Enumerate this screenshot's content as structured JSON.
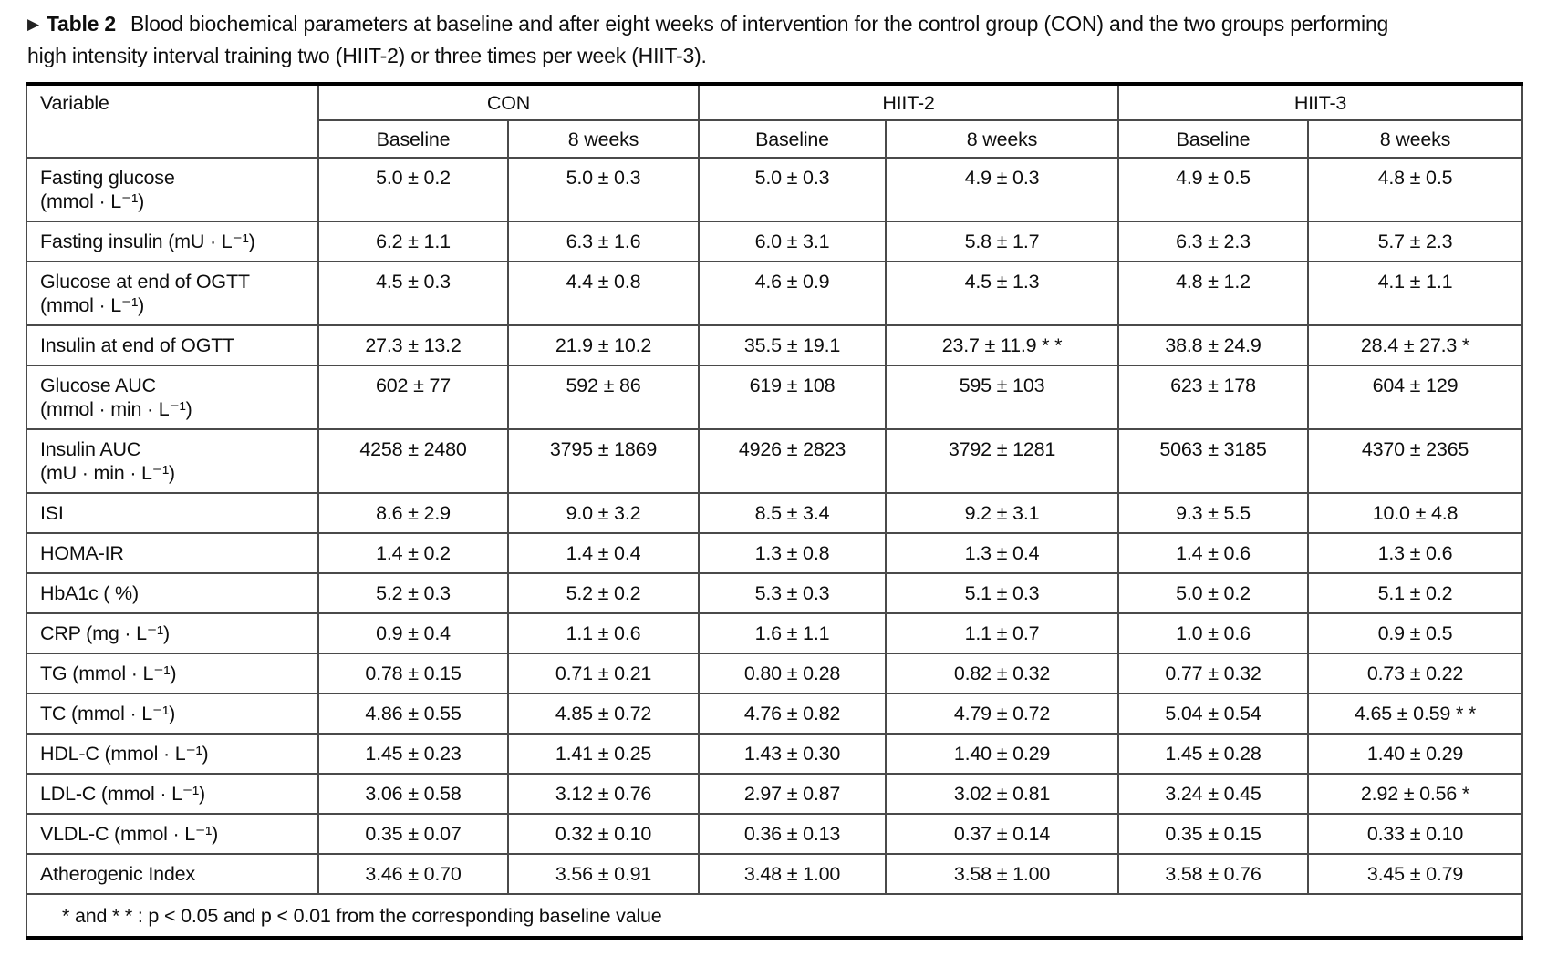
{
  "caption": {
    "marker": "▶",
    "label": "Table 2",
    "text": "Blood biochemical parameters at baseline and after eight weeks of intervention for the control group (CON) and the two groups performing high intensity interval training two (HIIT-2) or three times per week (HIIT-3)."
  },
  "table": {
    "variable_header": "Variable",
    "groups": [
      {
        "name": "CON",
        "subheaders": [
          "Baseline",
          "8 weeks"
        ]
      },
      {
        "name": "HIIT-2",
        "subheaders": [
          "Baseline",
          "8 weeks"
        ]
      },
      {
        "name": "HIIT-3",
        "subheaders": [
          "Baseline",
          "8 weeks"
        ]
      }
    ],
    "rows": [
      {
        "variable": [
          "Fasting glucose",
          "(mmol · L⁻¹)"
        ],
        "values": [
          "5.0 ± 0.2",
          "5.0 ± 0.3",
          "5.0 ± 0.3",
          "4.9 ± 0.3",
          "4.9 ± 0.5",
          "4.8 ± 0.5"
        ]
      },
      {
        "variable": [
          "Fasting insulin (mU · L⁻¹)"
        ],
        "values": [
          "6.2 ± 1.1",
          "6.3 ± 1.6",
          "6.0 ± 3.1",
          "5.8 ± 1.7",
          "6.3 ± 2.3",
          "5.7 ± 2.3"
        ]
      },
      {
        "variable": [
          "Glucose at end of OGTT",
          "(mmol · L⁻¹)"
        ],
        "values": [
          "4.5 ± 0.3",
          "4.4 ± 0.8",
          "4.6 ± 0.9",
          "4.5 ± 1.3",
          "4.8 ± 1.2",
          "4.1 ± 1.1"
        ]
      },
      {
        "variable": [
          "Insulin at end of OGTT"
        ],
        "values": [
          "27.3 ± 13.2",
          "21.9 ± 10.2",
          "35.5 ± 19.1",
          "23.7 ± 11.9 * *",
          "38.8 ± 24.9",
          "28.4 ± 27.3 *"
        ]
      },
      {
        "variable": [
          "Glucose AUC",
          "(mmol · min · L⁻¹)"
        ],
        "values": [
          "602 ± 77",
          "592 ± 86",
          "619 ± 108",
          "595 ± 103",
          "623 ± 178",
          "604 ± 129"
        ]
      },
      {
        "variable": [
          "Insulin AUC",
          "(mU · min · L⁻¹)"
        ],
        "values": [
          "4258 ± 2480",
          "3795 ± 1869",
          "4926 ± 2823",
          "3792 ± 1281",
          "5063 ± 3185",
          "4370 ± 2365"
        ]
      },
      {
        "variable": [
          "ISI"
        ],
        "values": [
          "8.6 ± 2.9",
          "9.0  ± 3.2",
          "8.5 ± 3.4",
          "9.2 ± 3.1",
          "9.3 ± 5.5",
          "10.0 ± 4.8"
        ]
      },
      {
        "variable": [
          "HOMA-IR"
        ],
        "values": [
          "1.4 ± 0.2",
          "1.4 ± 0.4",
          "1.3 ± 0.8",
          "1.3 ± 0.4",
          "1.4 ± 0.6",
          "1.3 ± 0.6"
        ]
      },
      {
        "variable": [
          "HbA1c ( %)"
        ],
        "values": [
          "5.2 ± 0.3",
          "5.2 ± 0.2",
          "5.3 ± 0.3",
          "5.1 ± 0.3",
          "5.0 ± 0.2",
          "5.1 ± 0.2"
        ]
      },
      {
        "variable": [
          "CRP (mg · L⁻¹)"
        ],
        "values": [
          "0.9 ± 0.4",
          "1.1 ± 0.6",
          "1.6 ± 1.1",
          "1.1 ± 0.7",
          "1.0 ± 0.6",
          "0.9 ± 0.5"
        ]
      },
      {
        "variable": [
          "TG (mmol · L⁻¹)"
        ],
        "values": [
          "0.78 ± 0.15",
          "0.71 ± 0.21",
          "0.80 ± 0.28",
          "0.82 ± 0.32",
          "0.77 ± 0.32",
          "0.73 ± 0.22"
        ]
      },
      {
        "variable": [
          "TC (mmol · L⁻¹)"
        ],
        "values": [
          "4.86 ± 0.55",
          "4.85 ± 0.72",
          "4.76 ± 0.82",
          "4.79 ± 0.72",
          "5.04 ± 0.54",
          "4.65 ± 0.59 * *"
        ]
      },
      {
        "variable": [
          "HDL-C (mmol · L⁻¹)"
        ],
        "values": [
          "1.45 ± 0.23",
          "1.41 ± 0.25",
          "1.43 ± 0.30",
          "1.40 ± 0.29",
          "1.45 ± 0.28",
          "1.40 ± 0.29"
        ]
      },
      {
        "variable": [
          "LDL-C (mmol · L⁻¹)"
        ],
        "values": [
          "3.06 ± 0.58",
          "3.12 ± 0.76",
          "2.97 ± 0.87",
          "3.02 ± 0.81",
          "3.24 ± 0.45",
          "2.92 ± 0.56 *"
        ]
      },
      {
        "variable": [
          "VLDL-C (mmol · L⁻¹)"
        ],
        "values": [
          "0.35 ± 0.07",
          "0.32 ± 0.10",
          "0.36 ± 0.13",
          "0.37 ± 0.14",
          "0.35 ± 0.15",
          "0.33 ± 0.10"
        ]
      },
      {
        "variable": [
          "Atherogenic Index"
        ],
        "values": [
          "3.46 ± 0.70",
          "3.56 ± 0.91",
          "3.48 ± 1.00",
          "3.58 ± 1.00",
          "3.58 ± 0.76",
          "3.45 ± 0.79"
        ]
      }
    ],
    "footnote": "*  and  * * : p < 0.05 and p < 0.01 from the corresponding baseline value"
  },
  "colors": {
    "text": "#0e0e0e",
    "border_thick": "#000000",
    "border_thin": "#4a4a4a",
    "background": "#ffffff"
  }
}
